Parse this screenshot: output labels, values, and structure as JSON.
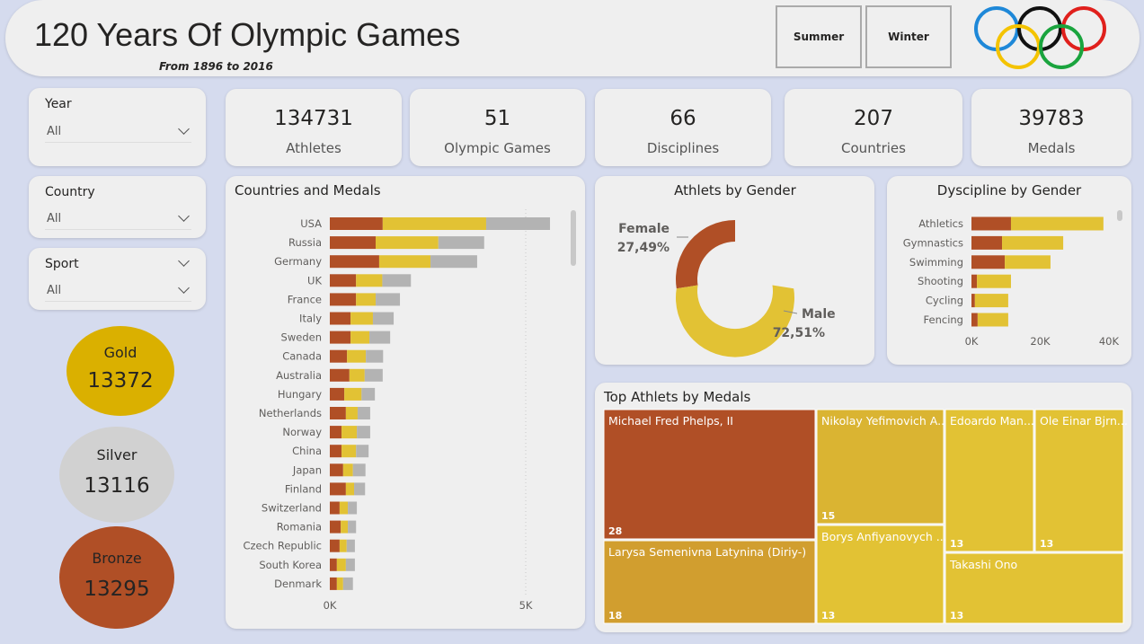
{
  "header": {
    "title": "120 Years Of Olympic Games",
    "subtitle": "From 1896 to 2016",
    "buttons": [
      "Summer",
      "Winter"
    ]
  },
  "filters": [
    {
      "label": "Year",
      "value": "All"
    },
    {
      "label": "Country",
      "value": "All"
    },
    {
      "label": "Sport",
      "value": "All"
    }
  ],
  "kpis": [
    {
      "value": 134731,
      "label": "Athletes"
    },
    {
      "value": 51,
      "label": "Olympic Games"
    },
    {
      "value": 66,
      "label": "Disciplines"
    },
    {
      "value": 207,
      "label": "Countries"
    },
    {
      "value": 39783,
      "label": "Medals"
    }
  ],
  "medals": [
    {
      "label": "Gold",
      "value": 13372
    },
    {
      "label": "Silver",
      "value": 13116
    },
    {
      "label": "Bronze",
      "value": 13295
    }
  ],
  "chart_data": [
    {
      "type": "bar",
      "orientation": "horizontal",
      "stacked": true,
      "title": "Countries and Medals",
      "categories": [
        "USA",
        "Russia",
        "Germany",
        "UK",
        "France",
        "Italy",
        "Sweden",
        "Canada",
        "Australia",
        "Hungary",
        "Netherlands",
        "Norway",
        "China",
        "Japan",
        "Finland",
        "Switzerland",
        "Romania",
        "Czech Republic",
        "South Korea",
        "Denmark"
      ],
      "series": [
        {
          "color": "#b04f26",
          "values": [
            1350,
            1170,
            1260,
            670,
            670,
            530,
            530,
            440,
            500,
            370,
            410,
            300,
            300,
            340,
            410,
            250,
            280,
            250,
            180,
            180
          ]
        },
        {
          "color": "#e2c234",
          "values": [
            2640,
            1600,
            1310,
            670,
            500,
            570,
            480,
            480,
            390,
            440,
            300,
            390,
            370,
            250,
            210,
            210,
            180,
            180,
            230,
            160
          ]
        },
        {
          "color": "#b3b3b3",
          "values": [
            1630,
            1170,
            1190,
            730,
            620,
            530,
            530,
            440,
            460,
            340,
            320,
            340,
            320,
            320,
            280,
            230,
            210,
            210,
            230,
            250
          ]
        }
      ],
      "xlim": [
        0,
        6000
      ],
      "xticks": [
        {
          "value": 0,
          "label": "0K"
        },
        {
          "value": 5000,
          "label": "5K"
        }
      ],
      "grid": true
    },
    {
      "type": "pie",
      "donut": true,
      "title": "Athlets by Gender",
      "categories": [
        "Female",
        "Male"
      ],
      "values": [
        27.49,
        72.51
      ],
      "value_labels": [
        "27,49%",
        "72,51%"
      ],
      "colors": [
        "#b04f26",
        "#e2c234"
      ]
    },
    {
      "type": "bar",
      "orientation": "horizontal",
      "stacked": true,
      "title": "Dyscipline by Gender",
      "categories": [
        "Athletics",
        "Gymnastics",
        "Swimming",
        "Shooting",
        "Cycling",
        "Fencing"
      ],
      "series": [
        {
          "color": "#b04f26",
          "values": [
            11500,
            8900,
            9700,
            1600,
            1000,
            1800
          ]
        },
        {
          "color": "#e2c234",
          "values": [
            26900,
            17800,
            13300,
            9900,
            9700,
            8900
          ]
        }
      ],
      "xlim": [
        0,
        42000
      ],
      "xticks": [
        {
          "value": 0,
          "label": "0K"
        },
        {
          "value": 20000,
          "label": "20K"
        },
        {
          "value": 40000,
          "label": "40K"
        }
      ],
      "grid": false
    },
    {
      "type": "treemap",
      "title": "Top Athlets by Medals",
      "categories": [
        "Michael Fred Phelps, II",
        "Larysa Semenivna Latynina (Diriy-)",
        "Nikolay Yefimovich A...",
        "Borys Anfiyanovych ...",
        "Edoardo Man...",
        "Ole Einar Bjrn...",
        "Takashi Ono"
      ],
      "values": [
        28,
        18,
        15,
        13,
        13,
        13,
        13
      ],
      "colors": [
        "#b04f26",
        "#d19e2f",
        "#dab432",
        "#e2c234",
        "#e2c234",
        "#e2c234",
        "#e2c234"
      ]
    }
  ]
}
